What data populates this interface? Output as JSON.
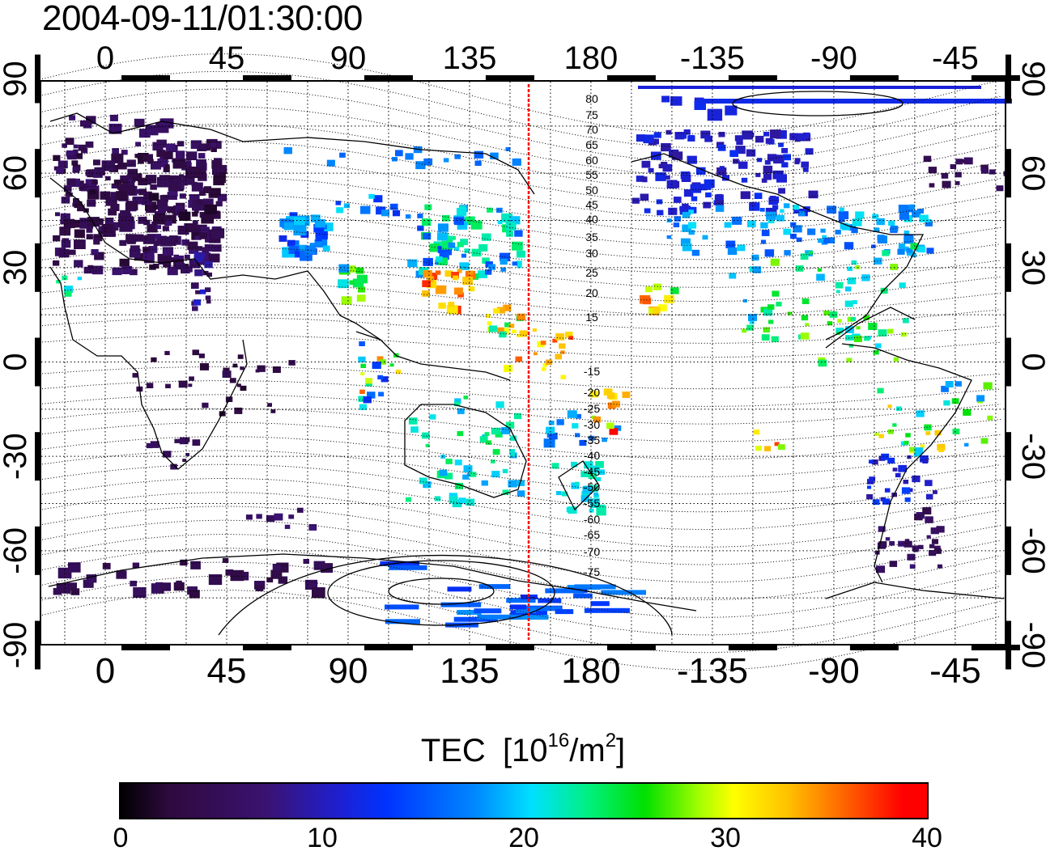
{
  "title": "2004-09-11/01:30:00",
  "top_lon_labels": [
    "0",
    "45",
    "90",
    "135",
    "180",
    "-135",
    "-90",
    "-45"
  ],
  "bottom_lon_labels": [
    "0",
    "45",
    "90",
    "135",
    "180",
    "-135",
    "-90",
    "-45"
  ],
  "left_lat_labels": [
    "90",
    "60",
    "30",
    "0",
    "-30",
    "-60",
    "-90"
  ],
  "right_lat_labels": [
    "90",
    "60",
    "30",
    "0",
    "-30",
    "-60",
    "-90"
  ],
  "contour_labels": [
    "80",
    "75",
    "70",
    "65",
    "60",
    "55",
    "50",
    "45",
    "40",
    "35",
    "30",
    "25",
    "20",
    "15",
    "-15",
    "-20",
    "-25",
    "-30",
    "-35",
    "-40",
    "-45",
    "-50",
    "-55",
    "-60",
    "-65",
    "-70",
    "-75"
  ],
  "colorbar": {
    "title_prefix": "TEC",
    "title_unit": "[10",
    "title_exp": "16",
    "title_mid": "/m",
    "title_exp2": "2",
    "title_suffix": "]",
    "ticks": [
      "0",
      "10",
      "20",
      "30",
      "40"
    ],
    "min": 0,
    "max": 40
  },
  "colors": {
    "line_marker": "#ff0000",
    "low": "#2e0a3e",
    "mid": "#00e0ff",
    "high": "#ff0000"
  }
}
